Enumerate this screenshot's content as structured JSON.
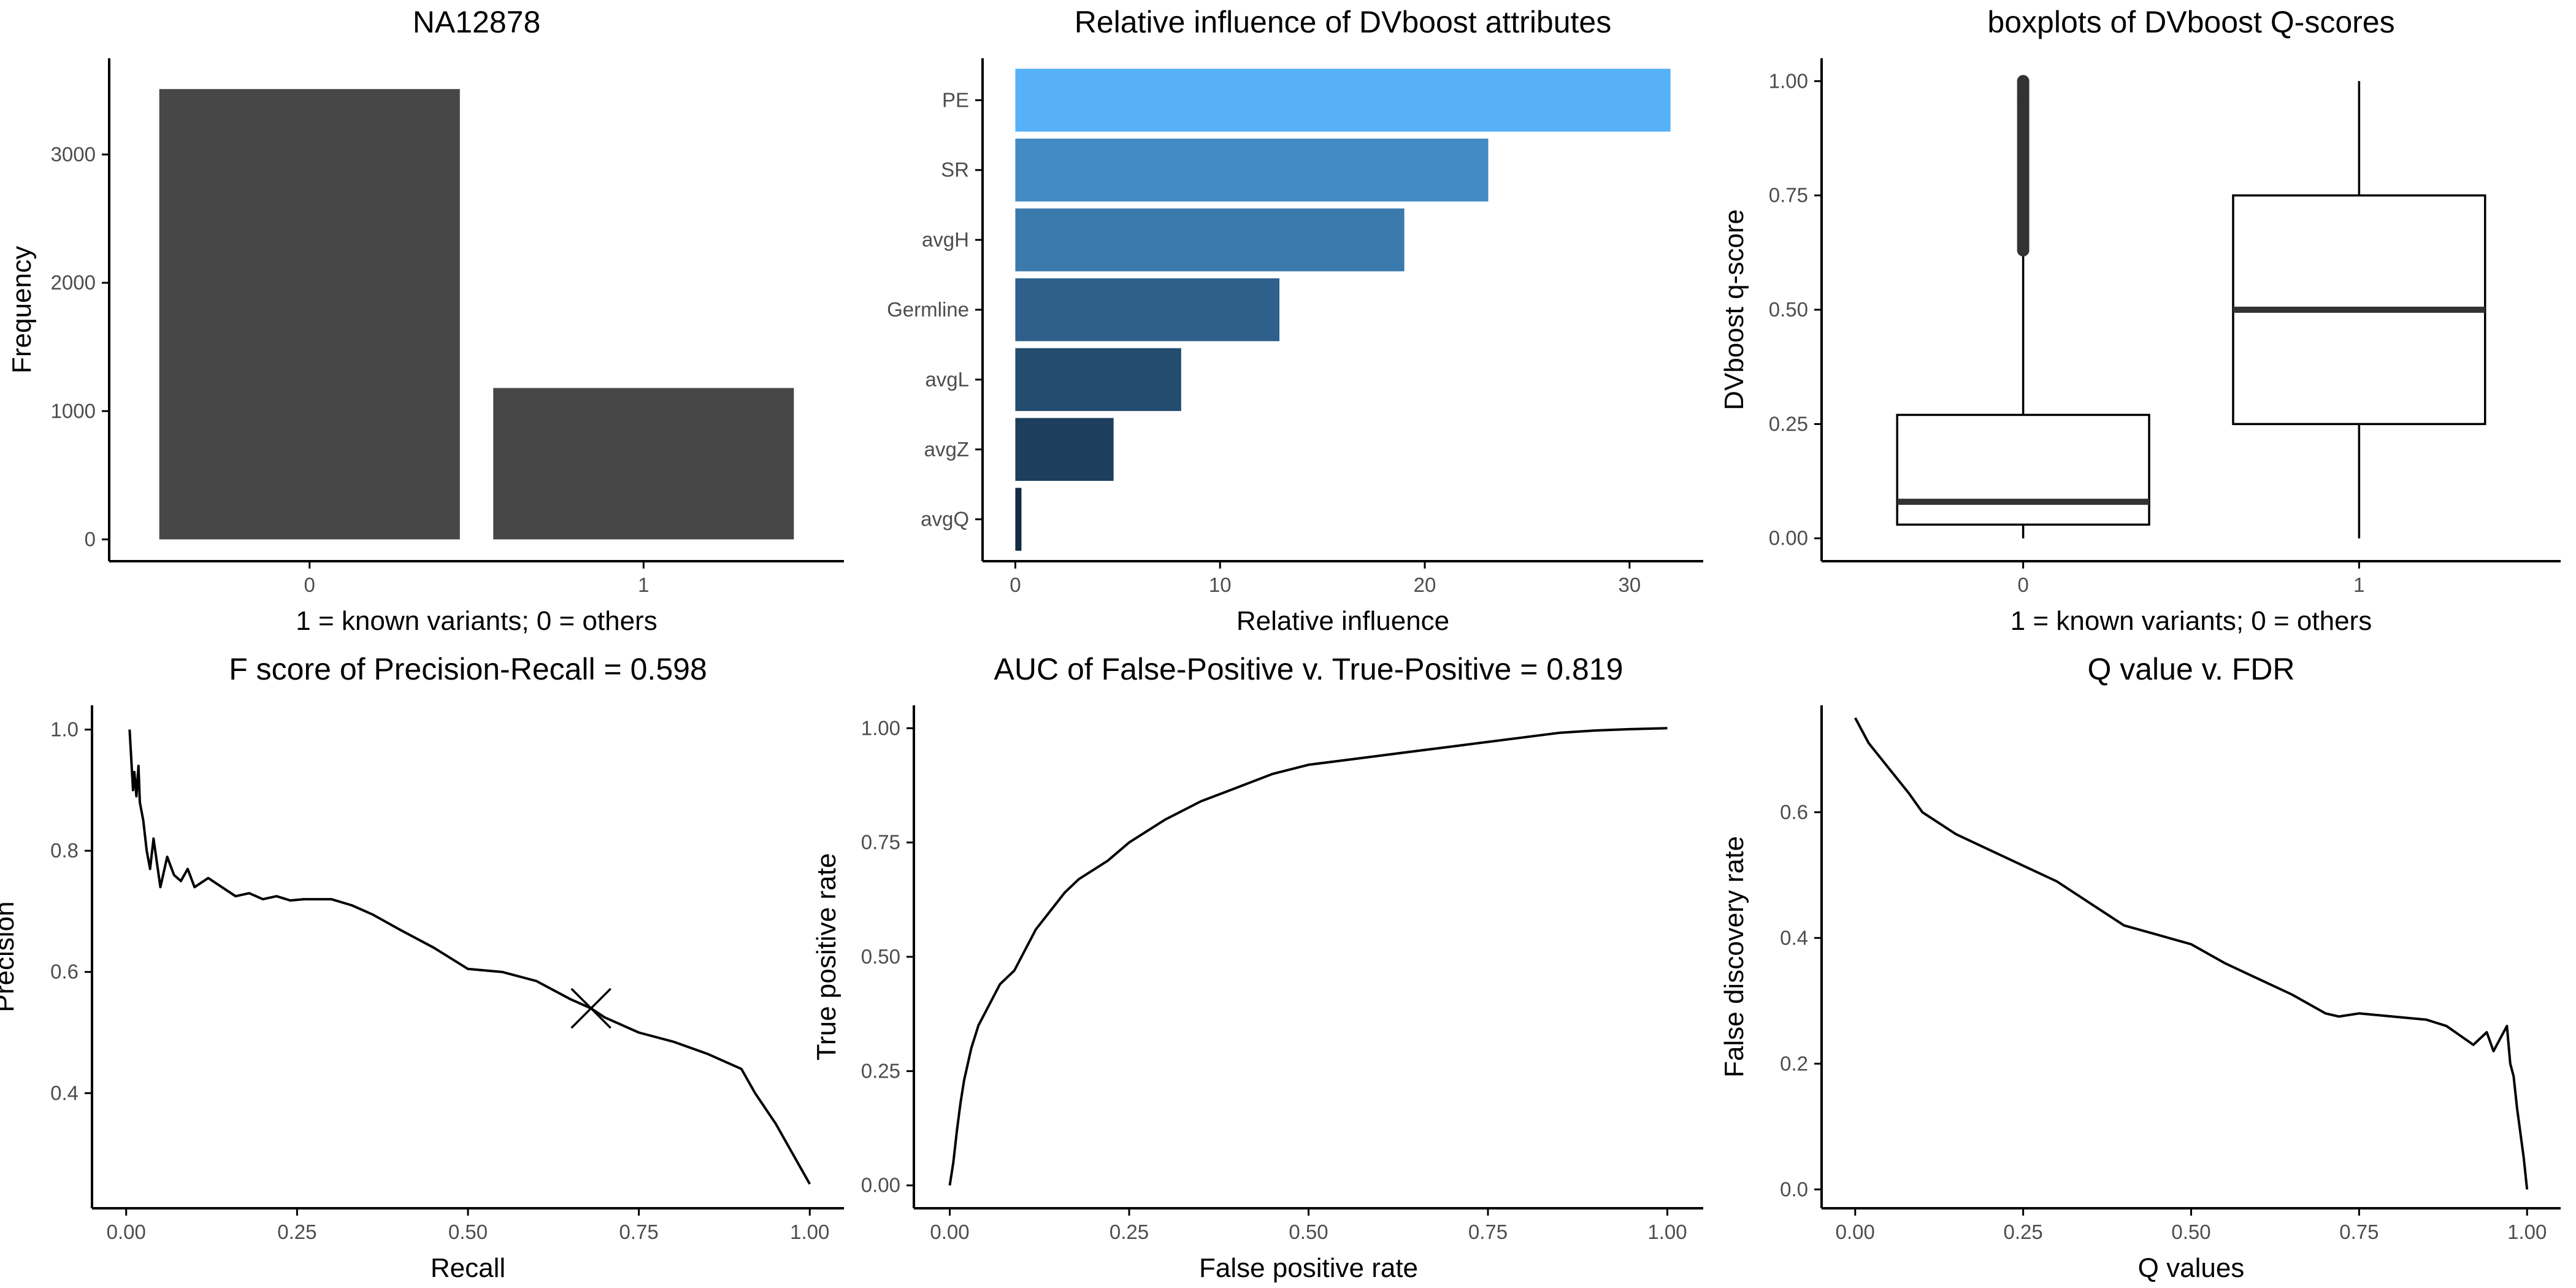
{
  "colors": {
    "bar_fill": "#474747",
    "line": "#000000",
    "axis": "#000000",
    "tick_text": "#4d4d4d",
    "median": "#333333",
    "influence_gradient_low": "#132B43",
    "influence_gradient_high": "#56B1F7"
  },
  "chart_data": [
    {
      "id": "frequency",
      "type": "bar",
      "title": "NA12878",
      "xlabel": "1 = known variants; 0 = others",
      "ylabel": "Frequency",
      "categories": [
        "0",
        "1"
      ],
      "values": [
        3510,
        1180
      ],
      "ylim": [
        -170,
        3750
      ],
      "yticks": [
        0,
        1000,
        2000,
        3000
      ],
      "ytick_labels": [
        "0",
        "1000",
        "2000",
        "3000"
      ],
      "grid": false,
      "legend": "none"
    },
    {
      "id": "influence",
      "type": "bar",
      "orientation": "horizontal",
      "title": "Relative influence of DVboost attributes",
      "xlabel": "Relative influence",
      "ylabel": "",
      "categories": [
        "PE",
        "SR",
        "avgH",
        "Germline",
        "avgL",
        "avgZ",
        "avgQ"
      ],
      "values": [
        32.0,
        23.1,
        19.0,
        12.9,
        8.1,
        4.8,
        0.3
      ],
      "xlim": [
        -1.6,
        33.6
      ],
      "xticks": [
        0,
        10,
        20,
        30
      ],
      "xtick_labels": [
        "0",
        "10",
        "20",
        "30"
      ],
      "color_scale": "value",
      "grid": false,
      "legend": "none"
    },
    {
      "id": "qscore_boxplot",
      "type": "boxplot",
      "title": "boxplots of DVboost Q-scores",
      "xlabel": "1 = known variants; 0 = others",
      "ylabel": "DVboost q-score",
      "categories": [
        "0",
        "1"
      ],
      "boxes": [
        {
          "category": "0",
          "whisker_low": 0.0,
          "q1": 0.03,
          "median": 0.08,
          "q3": 0.27,
          "whisker_high": 0.63,
          "outliers_range": [
            0.63,
            1.0
          ]
        },
        {
          "category": "1",
          "whisker_low": 0.0,
          "q1": 0.25,
          "median": 0.5,
          "q3": 0.75,
          "whisker_high": 1.0,
          "outliers_range": null
        }
      ],
      "ylim": [
        -0.05,
        1.05
      ],
      "yticks": [
        0,
        0.25,
        0.5,
        0.75,
        1.0
      ],
      "ytick_labels": [
        "0.00",
        "0.25",
        "0.50",
        "0.75",
        "1.00"
      ],
      "grid": false,
      "legend": "none"
    },
    {
      "id": "precision_recall",
      "type": "line",
      "title": "F score of Precision-Recall = 0.598",
      "xlabel": "Recall",
      "ylabel": "Precision",
      "series": [
        {
          "x": [
            0.005,
            0.01,
            0.012,
            0.015,
            0.018,
            0.02,
            0.025,
            0.03,
            0.035,
            0.04,
            0.05,
            0.06,
            0.07,
            0.08,
            0.09,
            0.1,
            0.12,
            0.14,
            0.16,
            0.18,
            0.2,
            0.22,
            0.24,
            0.26,
            0.28,
            0.3,
            0.33,
            0.36,
            0.4,
            0.45,
            0.5,
            0.55,
            0.6,
            0.65,
            0.68,
            0.7,
            0.75,
            0.8,
            0.85,
            0.88,
            0.9,
            0.92,
            0.95,
            0.97,
            0.99,
            1.0
          ],
          "y": [
            1.0,
            0.9,
            0.93,
            0.89,
            0.94,
            0.88,
            0.85,
            0.8,
            0.77,
            0.82,
            0.74,
            0.79,
            0.76,
            0.75,
            0.77,
            0.74,
            0.755,
            0.74,
            0.725,
            0.73,
            0.72,
            0.725,
            0.718,
            0.72,
            0.72,
            0.72,
            0.71,
            0.695,
            0.67,
            0.64,
            0.605,
            0.6,
            0.585,
            0.555,
            0.54,
            0.525,
            0.5,
            0.485,
            0.465,
            0.45,
            0.44,
            0.4,
            0.35,
            0.31,
            0.27,
            0.25
          ]
        }
      ],
      "markers": [
        {
          "x": 0.68,
          "y": 0.54,
          "shape": "x"
        }
      ],
      "xlim": [
        -0.05,
        1.05
      ],
      "ylim": [
        0.21,
        1.04
      ],
      "xticks": [
        0,
        0.25,
        0.5,
        0.75,
        1.0
      ],
      "xtick_labels": [
        "0.00",
        "0.25",
        "0.50",
        "0.75",
        "1.00"
      ],
      "yticks": [
        0.4,
        0.6,
        0.8,
        1.0
      ],
      "ytick_labels": [
        "0.4",
        "0.6",
        "0.8",
        "1.0"
      ],
      "grid": false,
      "legend": "none"
    },
    {
      "id": "roc",
      "type": "line",
      "title": "AUC of False-Positive v. True-Positive = 0.819",
      "xlabel": "False positive rate",
      "ylabel": "True positive rate",
      "series": [
        {
          "x": [
            0.0,
            0.005,
            0.01,
            0.015,
            0.02,
            0.03,
            0.04,
            0.05,
            0.07,
            0.09,
            0.1,
            0.12,
            0.14,
            0.16,
            0.18,
            0.2,
            0.22,
            0.25,
            0.28,
            0.3,
            0.35,
            0.4,
            0.45,
            0.5,
            0.55,
            0.6,
            0.65,
            0.7,
            0.75,
            0.8,
            0.85,
            0.9,
            0.95,
            1.0
          ],
          "y": [
            0.0,
            0.05,
            0.12,
            0.18,
            0.23,
            0.3,
            0.35,
            0.38,
            0.44,
            0.47,
            0.5,
            0.56,
            0.6,
            0.64,
            0.67,
            0.69,
            0.71,
            0.75,
            0.78,
            0.8,
            0.84,
            0.87,
            0.9,
            0.92,
            0.93,
            0.94,
            0.95,
            0.96,
            0.97,
            0.98,
            0.99,
            0.995,
            0.998,
            1.0
          ]
        }
      ],
      "xlim": [
        -0.05,
        1.05
      ],
      "ylim": [
        -0.05,
        1.05
      ],
      "xticks": [
        0,
        0.25,
        0.5,
        0.75,
        1.0
      ],
      "xtick_labels": [
        "0.00",
        "0.25",
        "0.50",
        "0.75",
        "1.00"
      ],
      "yticks": [
        0,
        0.25,
        0.5,
        0.75,
        1.0
      ],
      "ytick_labels": [
        "0.00",
        "0.25",
        "0.50",
        "0.75",
        "1.00"
      ],
      "grid": false,
      "legend": "none"
    },
    {
      "id": "qvalue_fdr",
      "type": "line",
      "title": "Q value v. FDR",
      "xlabel": "Q values",
      "ylabel": "False discovery rate",
      "series": [
        {
          "x": [
            0.0,
            0.02,
            0.05,
            0.08,
            0.1,
            0.15,
            0.2,
            0.25,
            0.3,
            0.35,
            0.4,
            0.45,
            0.5,
            0.55,
            0.6,
            0.65,
            0.7,
            0.72,
            0.75,
            0.8,
            0.85,
            0.88,
            0.9,
            0.92,
            0.94,
            0.95,
            0.96,
            0.97,
            0.975,
            0.98,
            0.985,
            0.99,
            0.995,
            1.0
          ],
          "y": [
            0.75,
            0.71,
            0.67,
            0.63,
            0.6,
            0.565,
            0.54,
            0.515,
            0.49,
            0.455,
            0.42,
            0.405,
            0.39,
            0.36,
            0.335,
            0.31,
            0.28,
            0.275,
            0.28,
            0.275,
            0.27,
            0.26,
            0.245,
            0.23,
            0.25,
            0.22,
            0.24,
            0.26,
            0.2,
            0.18,
            0.13,
            0.09,
            0.05,
            0.0
          ]
        }
      ],
      "xlim": [
        -0.05,
        1.05
      ],
      "ylim": [
        -0.03,
        0.77
      ],
      "xticks": [
        0,
        0.25,
        0.5,
        0.75,
        1.0
      ],
      "xtick_labels": [
        "0.00",
        "0.25",
        "0.50",
        "0.75",
        "1.00"
      ],
      "yticks": [
        0,
        0.2,
        0.4,
        0.6
      ],
      "ytick_labels": [
        "0.0",
        "0.2",
        "0.4",
        "0.6"
      ],
      "grid": false,
      "legend": "none"
    }
  ]
}
